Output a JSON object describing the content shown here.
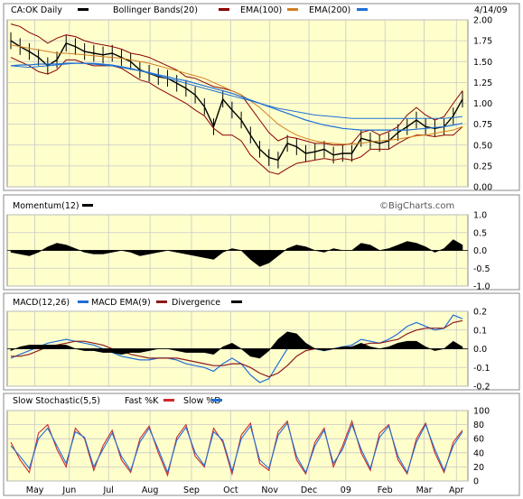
{
  "colors": {
    "background": "#ffffff",
    "panel_fill": "#ffffcc",
    "grid": "#c8c8c8",
    "price": "#000000",
    "bollinger": "#8b0000",
    "ema100": "#d2801e",
    "ema200": "#1f6fd6",
    "momentum": "#000000",
    "macd": "#1f6fd6",
    "macd_ema": "#8b1a1a",
    "divergence": "#000000",
    "fast_k": "#cc2a2a",
    "slow_d": "#1f6fd6"
  },
  "watermark": "©BigCharts.com",
  "chart_data": [
    {
      "type": "line",
      "id": "price",
      "title": "CA:OK Daily",
      "date": "4/14/09",
      "legend": [
        "CA:OK Daily",
        "Bollinger Bands(20)",
        "EMA(100)",
        "EMA(200)"
      ],
      "ylim": [
        0,
        2
      ],
      "yticks": [
        "2.00",
        "1.75",
        "1.50",
        "1.25",
        "1.00",
        "0.75",
        "0.50",
        "0.25",
        "0.00"
      ],
      "ytick_values": [
        2,
        1.75,
        1.5,
        1.25,
        1,
        0.75,
        0.5,
        0.25,
        0
      ],
      "grid": true,
      "x_points": 50,
      "series": [
        {
          "name": "CA:OK Daily",
          "values": [
            1.75,
            1.68,
            1.62,
            1.55,
            1.45,
            1.52,
            1.72,
            1.68,
            1.62,
            1.6,
            1.58,
            1.6,
            1.55,
            1.5,
            1.4,
            1.36,
            1.32,
            1.3,
            1.24,
            1.18,
            1.1,
            0.96,
            0.72,
            1.05,
            0.92,
            0.8,
            0.62,
            0.45,
            0.35,
            0.32,
            0.52,
            0.48,
            0.4,
            0.42,
            0.45,
            0.38,
            0.4,
            0.4,
            0.58,
            0.55,
            0.52,
            0.55,
            0.65,
            0.72,
            0.8,
            0.72,
            0.7,
            0.72,
            0.85,
            1.05
          ]
        },
        {
          "name": "Bollinger Upper",
          "values": [
            1.95,
            1.92,
            1.85,
            1.8,
            1.72,
            1.78,
            1.82,
            1.8,
            1.75,
            1.72,
            1.7,
            1.68,
            1.65,
            1.6,
            1.58,
            1.55,
            1.5,
            1.45,
            1.4,
            1.32,
            1.3,
            1.25,
            1.2,
            1.18,
            1.15,
            1.1,
            0.95,
            0.8,
            0.65,
            0.55,
            0.6,
            0.58,
            0.55,
            0.52,
            0.52,
            0.5,
            0.5,
            0.52,
            0.65,
            0.68,
            0.62,
            0.66,
            0.72,
            0.86,
            0.95,
            0.86,
            0.8,
            0.84,
            1.0,
            1.15
          ]
        },
        {
          "name": "Bollinger Lower",
          "values": [
            1.55,
            1.5,
            1.45,
            1.38,
            1.35,
            1.4,
            1.52,
            1.52,
            1.48,
            1.45,
            1.45,
            1.45,
            1.42,
            1.35,
            1.28,
            1.25,
            1.18,
            1.12,
            1.06,
            1.0,
            0.92,
            0.85,
            0.7,
            0.62,
            0.62,
            0.55,
            0.38,
            0.28,
            0.18,
            0.15,
            0.22,
            0.28,
            0.3,
            0.32,
            0.34,
            0.32,
            0.34,
            0.32,
            0.36,
            0.45,
            0.45,
            0.45,
            0.52,
            0.58,
            0.62,
            0.62,
            0.6,
            0.62,
            0.62,
            0.72
          ]
        },
        {
          "name": "EMA(100)",
          "values": [
            1.7,
            1.68,
            1.66,
            1.64,
            1.62,
            1.6,
            1.6,
            1.59,
            1.58,
            1.57,
            1.56,
            1.55,
            1.54,
            1.52,
            1.5,
            1.48,
            1.45,
            1.42,
            1.39,
            1.36,
            1.33,
            1.3,
            1.25,
            1.2,
            1.15,
            1.1,
            1.03,
            0.95,
            0.85,
            0.75,
            0.68,
            0.62,
            0.58,
            0.55,
            0.53,
            0.52,
            0.51,
            0.51,
            0.52,
            0.54,
            0.55,
            0.56,
            0.57,
            0.59,
            0.61,
            0.62,
            0.64,
            0.66,
            0.68,
            0.72
          ]
        },
        {
          "name": "EMA(200)",
          "values": [
            1.45,
            1.46,
            1.46,
            1.47,
            1.47,
            1.47,
            1.48,
            1.48,
            1.48,
            1.47,
            1.46,
            1.45,
            1.43,
            1.41,
            1.39,
            1.37,
            1.34,
            1.32,
            1.29,
            1.27,
            1.24,
            1.21,
            1.18,
            1.15,
            1.12,
            1.08,
            1.04,
            1.0,
            0.96,
            0.92,
            0.88,
            0.84,
            0.8,
            0.77,
            0.74,
            0.72,
            0.7,
            0.69,
            0.68,
            0.68,
            0.68,
            0.68,
            0.68,
            0.68,
            0.69,
            0.7,
            0.71,
            0.72,
            0.74,
            0.76
          ]
        },
        {
          "name": "Long-term trend",
          "values": [
            1.45,
            1.44,
            1.43,
            1.44,
            1.45,
            1.46,
            1.47,
            1.48,
            1.48,
            1.48,
            1.47,
            1.46,
            1.44,
            1.42,
            1.39,
            1.36,
            1.33,
            1.3,
            1.27,
            1.24,
            1.21,
            1.18,
            1.15,
            1.12,
            1.09,
            1.06,
            1.03,
            1.0,
            0.97,
            0.94,
            0.92,
            0.9,
            0.88,
            0.86,
            0.85,
            0.84,
            0.83,
            0.82,
            0.82,
            0.82,
            0.82,
            0.82,
            0.82,
            0.82,
            0.82,
            0.82,
            0.82,
            0.82,
            0.83,
            0.84
          ]
        }
      ]
    },
    {
      "type": "area",
      "id": "momentum",
      "title": "Momentum(12)",
      "ylim": [
        -1,
        1
      ],
      "yticks": [
        "1.0",
        "0.5",
        "0.0",
        "-0.5",
        "-1.0"
      ],
      "ytick_values": [
        1,
        0.5,
        0,
        -0.5,
        -1
      ],
      "grid": true,
      "series": [
        {
          "name": "Momentum(12)",
          "values": [
            -0.05,
            -0.1,
            -0.15,
            -0.05,
            0.1,
            0.2,
            0.15,
            0.05,
            -0.05,
            -0.1,
            -0.1,
            -0.05,
            0.0,
            -0.05,
            -0.15,
            -0.1,
            -0.05,
            0.0,
            -0.05,
            -0.1,
            -0.15,
            -0.2,
            -0.25,
            -0.05,
            0.05,
            0.0,
            -0.25,
            -0.45,
            -0.35,
            -0.15,
            0.05,
            0.15,
            0.1,
            0.0,
            -0.05,
            0.05,
            0.0,
            0.0,
            0.2,
            0.15,
            0.0,
            0.05,
            0.15,
            0.25,
            0.2,
            0.1,
            -0.05,
            0.05,
            0.3,
            0.15
          ]
        }
      ]
    },
    {
      "type": "line",
      "id": "macd",
      "title": "MACD(12,26)",
      "legend": [
        "MACD(12,26)",
        "MACD EMA(9)",
        "Divergence"
      ],
      "ylim": [
        -0.2,
        0.2
      ],
      "yticks": [
        "0.2",
        "0.1",
        "0.0",
        "-0.1",
        "-0.2"
      ],
      "ytick_values": [
        0.2,
        0.1,
        0,
        -0.1,
        -0.2
      ],
      "grid": true,
      "series": [
        {
          "name": "MACD(12,26)",
          "values": [
            -0.05,
            -0.03,
            -0.01,
            0.01,
            0.03,
            0.04,
            0.05,
            0.04,
            0.03,
            0.02,
            0.0,
            -0.02,
            -0.04,
            -0.05,
            -0.06,
            -0.06,
            -0.05,
            -0.05,
            -0.06,
            -0.08,
            -0.09,
            -0.1,
            -0.12,
            -0.08,
            -0.05,
            -0.08,
            -0.14,
            -0.18,
            -0.16,
            -0.08,
            0.0,
            0.04,
            0.02,
            0.0,
            -0.01,
            0.0,
            0.01,
            0.02,
            0.05,
            0.04,
            0.03,
            0.05,
            0.08,
            0.12,
            0.14,
            0.12,
            0.1,
            0.11,
            0.18,
            0.16
          ]
        },
        {
          "name": "MACD EMA(9)",
          "values": [
            -0.04,
            -0.04,
            -0.03,
            -0.01,
            0.01,
            0.02,
            0.03,
            0.04,
            0.04,
            0.03,
            0.02,
            0.0,
            -0.01,
            -0.03,
            -0.04,
            -0.05,
            -0.05,
            -0.05,
            -0.05,
            -0.06,
            -0.07,
            -0.08,
            -0.09,
            -0.09,
            -0.08,
            -0.08,
            -0.1,
            -0.13,
            -0.15,
            -0.13,
            -0.09,
            -0.04,
            -0.01,
            0.0,
            0.0,
            0.0,
            0.0,
            0.01,
            0.02,
            0.03,
            0.03,
            0.04,
            0.05,
            0.08,
            0.1,
            0.11,
            0.11,
            0.11,
            0.14,
            0.15
          ]
        },
        {
          "name": "Divergence",
          "values": [
            -0.01,
            0.01,
            0.02,
            0.02,
            0.02,
            0.02,
            0.02,
            0.0,
            -0.01,
            -0.01,
            -0.02,
            -0.02,
            -0.03,
            -0.02,
            -0.02,
            -0.01,
            0.0,
            0.0,
            -0.01,
            -0.02,
            -0.02,
            -0.02,
            -0.03,
            0.01,
            0.03,
            0.0,
            -0.04,
            -0.05,
            -0.01,
            0.05,
            0.09,
            0.08,
            0.03,
            0.0,
            -0.01,
            0.0,
            0.01,
            0.01,
            0.03,
            0.01,
            0.0,
            0.01,
            0.03,
            0.04,
            0.04,
            0.01,
            -0.01,
            0.0,
            0.04,
            0.01
          ]
        }
      ]
    },
    {
      "type": "line",
      "id": "stochastic",
      "title": "Slow Stochastic(5,5)",
      "legend": [
        "Slow Stochastic(5,5)",
        "Fast %K",
        "Slow %D"
      ],
      "ylim": [
        0,
        100
      ],
      "yticks": [
        "100",
        "80",
        "60",
        "40",
        "20",
        "0"
      ],
      "ytick_values": [
        100,
        80,
        60,
        40,
        20,
        0
      ],
      "grid": true,
      "series": [
        {
          "name": "Fast %K",
          "values": [
            55,
            30,
            12,
            68,
            80,
            45,
            20,
            75,
            60,
            15,
            50,
            72,
            30,
            12,
            60,
            78,
            40,
            8,
            62,
            80,
            35,
            20,
            75,
            55,
            10,
            65,
            82,
            25,
            15,
            70,
            85,
            30,
            10,
            55,
            75,
            20,
            50,
            85,
            40,
            15,
            68,
            80,
            30,
            10,
            60,
            82,
            40,
            12,
            55,
            72
          ]
        },
        {
          "name": "Slow %D",
          "values": [
            50,
            35,
            18,
            60,
            75,
            50,
            25,
            70,
            62,
            20,
            45,
            68,
            35,
            15,
            55,
            75,
            45,
            12,
            58,
            76,
            40,
            22,
            70,
            58,
            14,
            60,
            78,
            30,
            18,
            65,
            82,
            35,
            12,
            50,
            72,
            25,
            45,
            80,
            45,
            18,
            62,
            78,
            35,
            12,
            55,
            80,
            45,
            15,
            50,
            70
          ]
        }
      ]
    }
  ],
  "x_axis": {
    "labels": [
      "May",
      "Jun",
      "Jul",
      "Aug",
      "Sep",
      "Oct",
      "Nov",
      "Dec",
      "09",
      "Feb",
      "Mar",
      "Apr"
    ],
    "positions": [
      0.06,
      0.135,
      0.22,
      0.31,
      0.4,
      0.485,
      0.57,
      0.655,
      0.735,
      0.82,
      0.905,
      0.975
    ]
  }
}
